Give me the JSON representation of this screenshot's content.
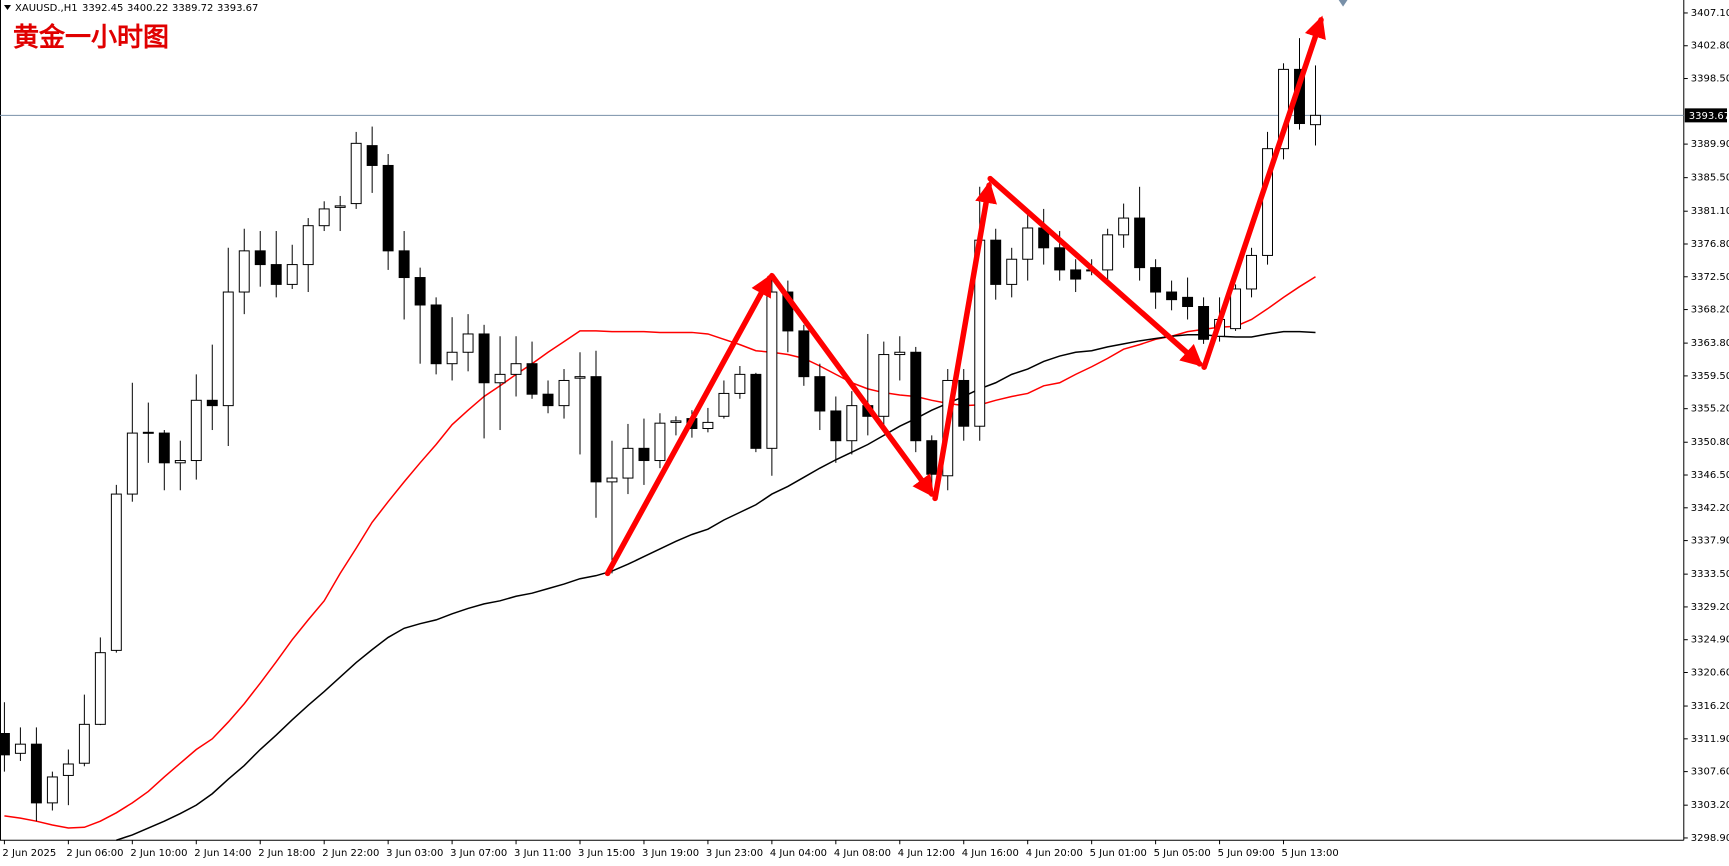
{
  "chart_data": {
    "type": "candlestick",
    "title": "黄金一小时图",
    "symbol": "XAUUSD.,H1",
    "categories": [
      "2 Jun 2025",
      null,
      null,
      null,
      "2 Jun 06:00",
      null,
      null,
      null,
      "2 Jun 10:00",
      null,
      null,
      null,
      "2 Jun 14:00",
      null,
      null,
      null,
      "2 Jun 18:00",
      null,
      null,
      null,
      "2 Jun 22:00",
      null,
      null,
      null,
      "3 Jun 03:00",
      null,
      null,
      null,
      "3 Jun 07:00",
      null,
      null,
      null,
      "3 Jun 11:00",
      null,
      null,
      null,
      "3 Jun 15:00",
      null,
      null,
      null,
      "3 Jun 19:00",
      null,
      null,
      null,
      "3 Jun 23:00",
      null,
      null,
      null,
      "4 Jun 04:00",
      null,
      null,
      null,
      "4 Jun 08:00",
      null,
      null,
      null,
      "4 Jun 12:00",
      null,
      null,
      null,
      "4 Jun 16:00",
      null,
      null,
      null,
      "4 Jun 20:00",
      null,
      null,
      null,
      "5 Jun 01:00",
      null,
      null,
      null,
      "5 Jun 05:00",
      null,
      null,
      null,
      "5 Jun 09:00",
      null,
      null,
      null,
      "5 Jun 13:00",
      null,
      null
    ],
    "open": [
      3312.6,
      3310.0,
      3311.2,
      3303.5,
      3307.1,
      3308.7,
      3313.8,
      3323.5,
      3344.0,
      3352.0,
      3352.0,
      3348.1,
      3348.4,
      3356.3,
      3355.6,
      3370.5,
      3375.9,
      3374.1,
      3371.5,
      3374.1,
      3379.2,
      3381.6,
      3382.1,
      3389.7,
      3387.1,
      3375.9,
      3372.4,
      3368.8,
      3361.1,
      3362.6,
      3365.0,
      3358.6,
      3359.7,
      3361.1,
      3357.1,
      3355.6,
      3359.2,
      3359.4,
      3345.6,
      3346.1,
      3350.0,
      3348.4,
      3353.4,
      3353.9,
      3352.6,
      3354.2,
      3357.2,
      3359.7,
      3350.0,
      3370.5,
      3365.4,
      3359.4,
      3354.9,
      3351.0,
      3355.6,
      3354.2,
      3362.3,
      3362.6,
      3351.0,
      3346.4,
      3358.9,
      3352.9,
      3377.3,
      3371.5,
      3374.8,
      3378.9,
      3376.3,
      3373.4,
      3373.3,
      3373.4,
      3378.0,
      3380.2,
      3373.7,
      3370.5,
      3369.8,
      3368.6,
      3364.7,
      3365.7,
      3370.9,
      3375.3,
      3389.3,
      3399.7,
      3392.45
    ],
    "high": [
      3316.7,
      3313.4,
      3313.4,
      3307.6,
      3310.5,
      3317.7,
      3325.2,
      3345.2,
      3358.6,
      3356.0,
      3352.4,
      3351.0,
      3359.7,
      3363.6,
      3376.3,
      3378.8,
      3378.5,
      3378.5,
      3376.7,
      3380.2,
      3382.4,
      3383.1,
      3391.5,
      3392.2,
      3388.6,
      3378.5,
      3373.7,
      3369.8,
      3367.2,
      3367.6,
      3366.2,
      3364.7,
      3364.7,
      3364.0,
      3358.9,
      3360.4,
      3362.6,
      3362.8,
      3351.0,
      3353.2,
      3353.9,
      3354.6,
      3354.2,
      3355.0,
      3355.3,
      3358.9,
      3360.8,
      3359.9,
      3373.0,
      3372.0,
      3366.2,
      3361.1,
      3356.8,
      3357.5,
      3365.0,
      3364.0,
      3364.7,
      3363.3,
      3351.7,
      3360.4,
      3360.4,
      3384.3,
      3378.8,
      3376.3,
      3380.6,
      3381.4,
      3378.5,
      3374.8,
      3374.8,
      3378.8,
      3382.1,
      3384.3,
      3374.8,
      3372.0,
      3372.4,
      3369.8,
      3369.8,
      3371.5,
      3376.3,
      3391.5,
      3400.5,
      3403.8,
      3400.22
    ],
    "low": [
      3307.6,
      3309.0,
      3301.1,
      3302.5,
      3303.2,
      3308.3,
      3313.7,
      3323.2,
      3343.0,
      3348.1,
      3344.5,
      3344.5,
      3345.9,
      3352.4,
      3350.3,
      3367.6,
      3371.2,
      3369.8,
      3370.9,
      3370.5,
      3378.5,
      3378.5,
      3381.4,
      3383.5,
      3373.4,
      3366.9,
      3361.1,
      3359.7,
      3358.9,
      3360.1,
      3351.3,
      3352.4,
      3356.8,
      3356.5,
      3354.6,
      3353.9,
      3349.2,
      3340.9,
      3333.6,
      3344.0,
      3345.2,
      3347.4,
      3351.7,
      3351.4,
      3352.1,
      3353.9,
      3356.5,
      3349.5,
      3346.4,
      3362.6,
      3358.2,
      3352.4,
      3348.1,
      3349.2,
      3351.7,
      3352.1,
      3358.9,
      3349.5,
      3343.7,
      3344.5,
      3351.0,
      3351.0,
      3369.5,
      3369.8,
      3372.0,
      3374.1,
      3372.0,
      3370.5,
      3372.7,
      3372.0,
      3376.3,
      3372.0,
      3368.3,
      3368.1,
      3366.9,
      3363.7,
      3364.0,
      3365.4,
      3369.8,
      3374.1,
      3387.9,
      3391.8,
      3389.72
    ],
    "close": [
      3309.8,
      3311.2,
      3303.5,
      3306.9,
      3308.6,
      3313.8,
      3323.2,
      3344.0,
      3352.0,
      3352.1,
      3348.1,
      3348.4,
      3356.3,
      3355.6,
      3370.5,
      3375.9,
      3374.1,
      3371.5,
      3374.1,
      3379.2,
      3381.4,
      3381.8,
      3390.0,
      3387.1,
      3375.9,
      3372.4,
      3368.8,
      3361.1,
      3362.6,
      3365.0,
      3358.6,
      3359.7,
      3361.1,
      3357.1,
      3355.6,
      3358.9,
      3359.4,
      3345.6,
      3346.1,
      3350.0,
      3348.4,
      3353.3,
      3353.6,
      3352.6,
      3353.4,
      3357.2,
      3359.7,
      3350.0,
      3370.5,
      3365.4,
      3359.4,
      3354.9,
      3351.0,
      3355.6,
      3354.2,
      3362.3,
      3362.6,
      3351.0,
      3346.6,
      3358.9,
      3352.9,
      3377.3,
      3371.5,
      3374.8,
      3378.9,
      3376.3,
      3373.4,
      3372.2,
      3373.4,
      3378.0,
      3380.2,
      3373.7,
      3370.5,
      3369.5,
      3368.6,
      3364.3,
      3366.9,
      3370.9,
      3375.3,
      3389.3,
      3399.7,
      3392.6,
      3393.67
    ],
    "up_color": "#ffffff",
    "down_color": "#000000",
    "wick_color": "#000000",
    "price_line_color": "#7890a8",
    "moving_averages": [
      {
        "color": "#ff0000",
        "values": [
          3301.8,
          3301.5,
          3301.1,
          3300.6,
          3300.2,
          3300.3,
          3301.1,
          3302.2,
          3303.5,
          3305.0,
          3306.9,
          3308.7,
          3310.5,
          3311.9,
          3314.1,
          3316.5,
          3319.2,
          3322.0,
          3324.9,
          3327.5,
          3330.0,
          3333.6,
          3336.9,
          3340.3,
          3343.0,
          3345.6,
          3348.1,
          3350.5,
          3353.1,
          3355.0,
          3356.8,
          3358.2,
          3359.7,
          3361.1,
          3362.6,
          3364.0,
          3365.4,
          3365.4,
          3365.3,
          3365.3,
          3365.3,
          3365.2,
          3365.2,
          3365.2,
          3365.0,
          3364.3,
          3363.6,
          3362.8,
          3362.6,
          3362.3,
          3361.8,
          3360.8,
          3359.7,
          3358.6,
          3357.8,
          3357.3,
          3357.0,
          3356.8,
          3356.3,
          3355.9,
          3355.6,
          3355.7,
          3356.3,
          3356.8,
          3357.2,
          3358.2,
          3358.6,
          3359.7,
          3360.7,
          3361.8,
          3363.0,
          3363.6,
          3364.3,
          3364.7,
          3365.3,
          3365.6,
          3365.9,
          3366.0,
          3366.9,
          3368.3,
          3369.8,
          3371.2,
          3372.5
        ]
      },
      {
        "color": "#000000",
        "values": [
          null,
          null,
          null,
          null,
          null,
          null,
          null,
          3298.6,
          3299.3,
          3300.2,
          3301.1,
          3302.1,
          3303.2,
          3304.7,
          3306.6,
          3308.4,
          3310.5,
          3312.4,
          3314.4,
          3316.3,
          3318.1,
          3320.0,
          3321.9,
          3323.6,
          3325.2,
          3326.4,
          3327.0,
          3327.5,
          3328.3,
          3329.0,
          3329.6,
          3330.0,
          3330.6,
          3331.0,
          3331.6,
          3332.2,
          3332.9,
          3333.3,
          3333.9,
          3334.8,
          3335.8,
          3336.8,
          3337.8,
          3338.7,
          3339.4,
          3340.6,
          3341.6,
          3342.6,
          3344.0,
          3345.0,
          3346.2,
          3347.4,
          3348.5,
          3349.5,
          3350.5,
          3351.7,
          3352.9,
          3353.9,
          3355.0,
          3355.9,
          3356.8,
          3357.8,
          3358.6,
          3359.7,
          3360.4,
          3361.4,
          3362.1,
          3362.6,
          3362.8,
          3363.3,
          3363.7,
          3364.1,
          3364.4,
          3364.7,
          3364.9,
          3364.9,
          3364.7,
          3364.6,
          3364.6,
          3365.0,
          3365.3,
          3365.3,
          3365.2
        ]
      }
    ],
    "ylim": [
      3298.6,
      3408.8
    ],
    "yticks": [
      {
        "value": 3298.9,
        "label": "3298.90"
      },
      {
        "value": 3303.2,
        "label": "3303.20"
      },
      {
        "value": 3307.6,
        "label": "3307.60"
      },
      {
        "value": 3311.9,
        "label": "3311.90"
      },
      {
        "value": 3316.2,
        "label": "3316.20"
      },
      {
        "value": 3320.6,
        "label": "3320.60"
      },
      {
        "value": 3324.9,
        "label": "3324.90"
      },
      {
        "value": 3329.2,
        "label": "3329.20"
      },
      {
        "value": 3333.5,
        "label": "3333.50"
      },
      {
        "value": 3337.9,
        "label": "3337.90"
      },
      {
        "value": 3342.2,
        "label": "3342.20"
      },
      {
        "value": 3346.5,
        "label": "3346.50"
      },
      {
        "value": 3350.8,
        "label": "3350.80"
      },
      {
        "value": 3355.2,
        "label": "3355.20"
      },
      {
        "value": 3359.5,
        "label": "3359.50"
      },
      {
        "value": 3363.8,
        "label": "3363.80"
      },
      {
        "value": 3368.2,
        "label": "3368.20"
      },
      {
        "value": 3372.5,
        "label": "3372.50"
      },
      {
        "value": 3376.8,
        "label": "3376.80"
      },
      {
        "value": 3381.1,
        "label": "3381.10"
      },
      {
        "value": 3385.5,
        "label": "3385.50"
      },
      {
        "value": 3389.9,
        "label": "3389.90"
      },
      {
        "value": 3398.5,
        "label": "3398.50"
      },
      {
        "value": 3402.8,
        "label": "3402.80"
      },
      {
        "value": 3407.1,
        "label": "3407.10"
      }
    ]
  }
}
